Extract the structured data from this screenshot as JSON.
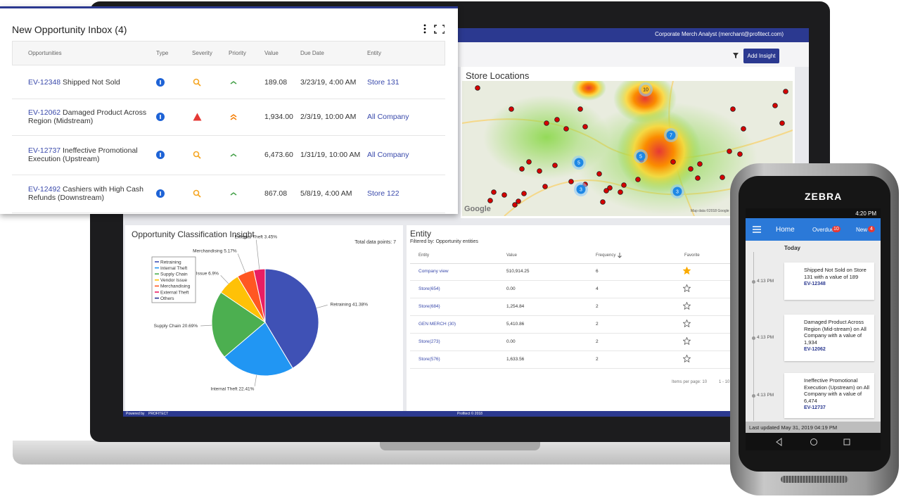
{
  "app": {
    "user": "Corporate Merch Analyst (merchant@profitect.com)",
    "add_insight": "Add Insight",
    "powered_by": "Powered by",
    "brand": "PROFITECT",
    "copyright": "Profitect © 2018"
  },
  "inbox": {
    "title": "New Opportunity Inbox (4)",
    "columns": [
      "Opportunities",
      "Type",
      "Severity",
      "Priority",
      "Value",
      "Due Date",
      "Entity"
    ],
    "rows": [
      {
        "id": "EV-12348",
        "description": "Shipped Not Sold",
        "value": "189.08",
        "due": "3/23/19, 4:00 AM",
        "entity": "Store 131"
      },
      {
        "id": "EV-12062",
        "description": "Damaged Product Across Region (Midstream)",
        "value": "1,934.00",
        "due": "2/3/19, 10:00 AM",
        "entity": "All Company"
      },
      {
        "id": "EV-12737",
        "description": "Ineffective Promotional Execution (Upstream)",
        "value": "6,473.60",
        "due": "1/31/19, 10:00 AM",
        "entity": "All Company"
      },
      {
        "id": "EV-12492",
        "description": "Cashiers with High Cash Refunds (Downstream)",
        "value": "867.08",
        "due": "5/8/19, 4:00 AM",
        "entity": "Store 122"
      }
    ]
  },
  "store_locations": {
    "title": "Store Locations",
    "clusters": [
      10,
      7,
      5,
      5,
      3,
      3
    ],
    "logo": "Google",
    "credit": "Map data ©2018 Google"
  },
  "chart_data": {
    "type": "pie",
    "title": "Opportunity Classification Insight",
    "subtitle": "Total data points: 7",
    "categories": [
      "Retraining",
      "Internal Theft",
      "Supply Chain",
      "Vendor Issue",
      "Merchandising",
      "External Theft",
      "Others"
    ],
    "values": [
      41.38,
      22.41,
      20.69,
      6.9,
      5.17,
      3.45,
      0
    ],
    "value_labels": [
      "Retraining 41.38%",
      "Internal Theft 22.41%",
      "Supply Chain 20.69%",
      "Vendor Issue 6.9%",
      "Merchandising 5.17%",
      "External Theft 3.45%",
      null
    ],
    "colors": [
      "#3f51b5",
      "#2196f3",
      "#4caf50",
      "#ffc107",
      "#ff5722",
      "#e91e63",
      "#283593"
    ]
  },
  "entity": {
    "title": "Entity",
    "subtitle": "Filtered by: Opportunity entities",
    "columns": [
      "Entity",
      "Value",
      "Frequency",
      "Favorite"
    ],
    "rows": [
      [
        "Company view",
        "510,914.25",
        6
      ],
      [
        "Store(654)",
        "0.00",
        4
      ],
      [
        "Store(684)",
        "1,254.84",
        2
      ],
      [
        "GEN MERCH (30)",
        "5,410.86",
        2
      ],
      [
        "Store(273)",
        "0.00",
        2
      ],
      [
        "Store(576)",
        "1,633.56",
        2
      ]
    ],
    "favorite": [
      true,
      false,
      false,
      false,
      false,
      false
    ],
    "items_per_page": "Items per page: 10",
    "range": "1 - 10"
  },
  "phone": {
    "brand": "ZEBRA",
    "time": "4:20 PM",
    "home": "Home",
    "overdue": "Overdue",
    "overdue_count": 10,
    "new": "New",
    "new_count": 4,
    "section": "Today",
    "items": [
      {
        "time": "4:13 PM",
        "text": "Shipped Not Sold  on Store 131 with a value of 189",
        "id": "EV-12348"
      },
      {
        "time": "4:13 PM",
        "text": "Damaged Product Across Region (Mid-stream)  on All Company with a value of 1,934",
        "id": "EV-12062"
      },
      {
        "time": "4:13 PM",
        "text": "Ineffective Promotional Execution (Upstream)  on All Company with a value of 6,474",
        "id": "EV-12737"
      }
    ],
    "last_updated": "Last updated May 31, 2019 04:19 PM"
  }
}
